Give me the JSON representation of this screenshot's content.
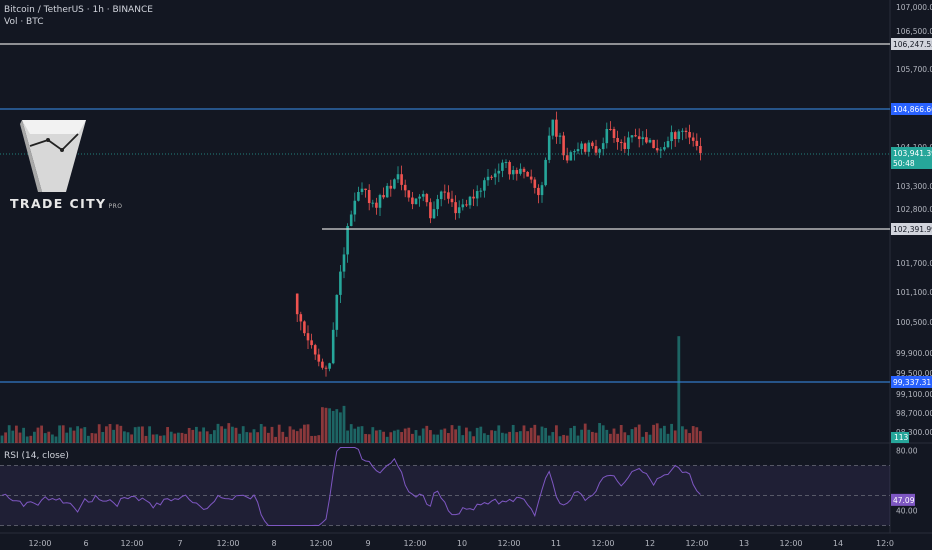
{
  "header": {
    "symbol": "Bitcoin / TetherUS · 1h · BINANCE",
    "volume": "Vol · BTC",
    "rsi": "RSI (14, close)"
  },
  "logo": {
    "brand": "TRADE CITY",
    "suffix": "PRO"
  },
  "colors": {
    "background": "#131722",
    "up": "#26a69a",
    "down": "#ef5350",
    "level_blue": "#3179c7",
    "level_white": "#d9d9d9",
    "rsi_line": "#7e57c2"
  },
  "chart_data": [
    {
      "type": "candlestick",
      "y_ticks": [
        "107,000.00",
        "106,500.00",
        "105,700.00",
        "104,100.00",
        "103,300.00",
        "102,800.00",
        "101,700.00",
        "101,100.00",
        "100,500.00",
        "99,900.00",
        "99,500.00",
        "99,100.00",
        "98,700.00",
        "98,300.00"
      ],
      "x_ticks": [
        "12:00",
        "6",
        "12:00",
        "7",
        "12:00",
        "8",
        "12:00",
        "9",
        "12:00",
        "10",
        "12:00",
        "11",
        "12:00",
        "12",
        "12:00",
        "13",
        "12:00",
        "14",
        "12:0"
      ],
      "levels": [
        {
          "label": "106,247.55",
          "price": 106247.55,
          "color": "white"
        },
        {
          "label": "104,866.60",
          "price": 104866.6,
          "color": "blue"
        },
        {
          "label": "102,391.99",
          "price": 102391.99,
          "color": "white"
        },
        {
          "label": "99,337.31",
          "price": 99337.31,
          "color": "blue"
        }
      ],
      "last_price": {
        "label": "103,941.39",
        "countdown": "50:48"
      },
      "volume_last": "113",
      "ylim": [
        98000,
        107000
      ]
    },
    {
      "type": "line",
      "name": "RSI (14, close)",
      "y_ticks": [
        "80.00",
        "40.00"
      ],
      "bands": [
        70,
        50,
        30
      ],
      "current": "47.09",
      "ylim": [
        25,
        85
      ]
    }
  ]
}
